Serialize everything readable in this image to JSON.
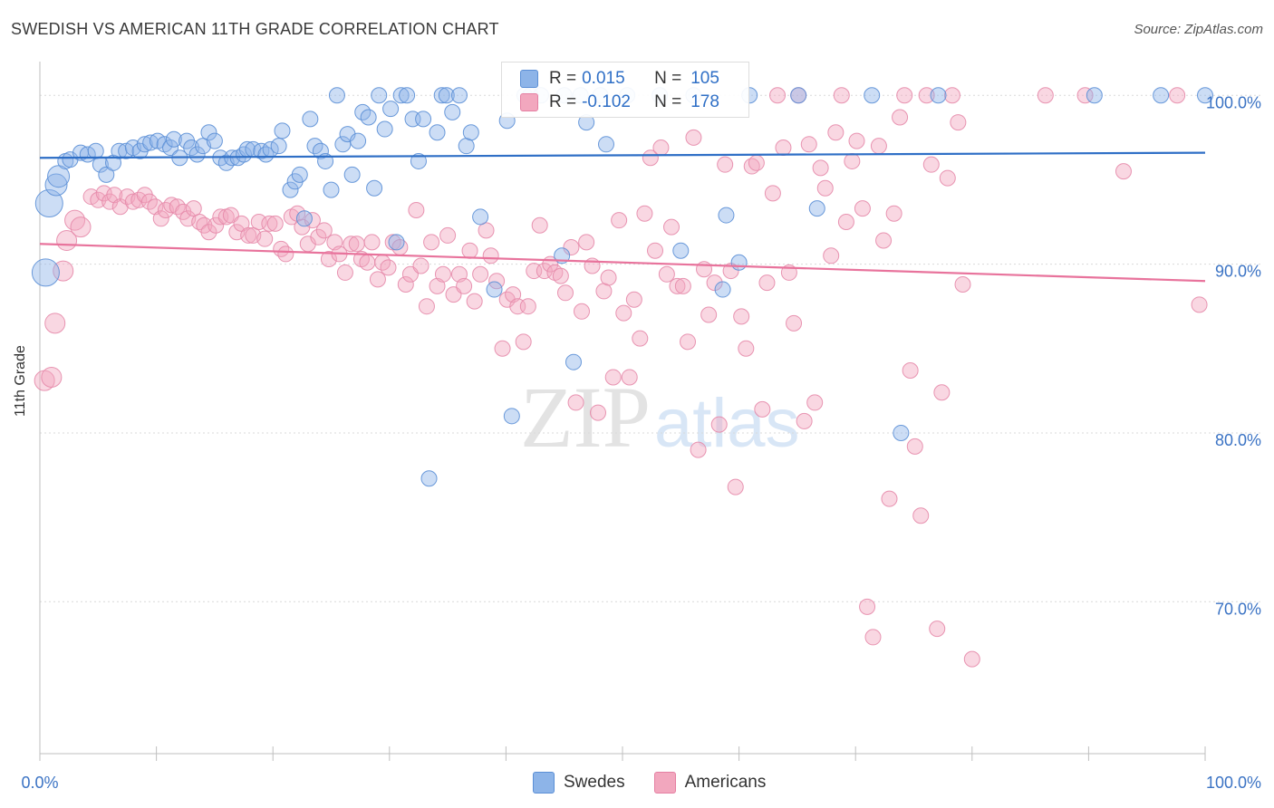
{
  "title": "SWEDISH VS AMERICAN 11TH GRADE CORRELATION CHART",
  "source": "Source: ZipAtlas.com",
  "watermark": {
    "zip": "ZIP",
    "atlas": "atlas"
  },
  "legend": {
    "rows": [
      {
        "r_label": "R =",
        "r_value": "0.015",
        "n_label": "N =",
        "n_value": "105",
        "color": "#8db4e8"
      },
      {
        "r_label": "R =",
        "r_value": "-0.102",
        "n_label": "N =",
        "n_value": "178",
        "color": "#f2a7be"
      }
    ]
  },
  "bottom_legend": [
    {
      "label": "Swedes",
      "color": "#8db4e8"
    },
    {
      "label": "Americans",
      "color": "#f2a7be"
    }
  ],
  "chart_data": {
    "type": "scatter",
    "title": "SWEDISH VS AMERICAN 11TH GRADE CORRELATION CHART",
    "xlabel": "",
    "ylabel": "11th Grade",
    "xlim": [
      0,
      100
    ],
    "ylim": [
      61,
      102
    ],
    "x_tick_labels": [
      "0.0%",
      "100.0%"
    ],
    "y_ticks": [
      {
        "value": 100,
        "label": "100.0%"
      },
      {
        "value": 90,
        "label": "90.0%"
      },
      {
        "value": 80,
        "label": "80.0%"
      },
      {
        "value": 70,
        "label": "70.0%"
      }
    ],
    "grid": true,
    "legend_position": "top-center",
    "series": [
      {
        "name": "Swedes",
        "color": "#8db4e8",
        "line_color": "#2f6fc6",
        "trend": [
          [
            0,
            96.3
          ],
          [
            100,
            96.6
          ]
        ],
        "points": [
          [
            0.5,
            89.5
          ],
          [
            0.8,
            93.6
          ],
          [
            1.4,
            94.7
          ],
          [
            1.6,
            95.2
          ],
          [
            2.2,
            96.1
          ],
          [
            2.6,
            96.2
          ],
          [
            3.5,
            96.6
          ],
          [
            4.1,
            96.5
          ],
          [
            4.8,
            96.7
          ],
          [
            5.2,
            95.9
          ],
          [
            5.7,
            95.3
          ],
          [
            6.3,
            96.0
          ],
          [
            6.8,
            96.7
          ],
          [
            7.4,
            96.7
          ],
          [
            8.0,
            96.9
          ],
          [
            8.6,
            96.7
          ],
          [
            9.0,
            97.1
          ],
          [
            9.5,
            97.2
          ],
          [
            10.1,
            97.3
          ],
          [
            10.7,
            97.1
          ],
          [
            11.2,
            96.9
          ],
          [
            11.5,
            97.4
          ],
          [
            12.0,
            96.3
          ],
          [
            12.6,
            97.3
          ],
          [
            13.0,
            96.9
          ],
          [
            13.5,
            96.5
          ],
          [
            14.0,
            97.0
          ],
          [
            14.5,
            97.8
          ],
          [
            15.0,
            97.3
          ],
          [
            15.5,
            96.3
          ],
          [
            16.0,
            96.0
          ],
          [
            16.5,
            96.3
          ],
          [
            17.0,
            96.3
          ],
          [
            17.5,
            96.5
          ],
          [
            17.8,
            96.8
          ],
          [
            18.3,
            96.8
          ],
          [
            19.0,
            96.7
          ],
          [
            19.4,
            96.5
          ],
          [
            19.8,
            96.8
          ],
          [
            20.5,
            97.0
          ],
          [
            20.8,
            97.9
          ],
          [
            21.5,
            94.4
          ],
          [
            21.9,
            94.9
          ],
          [
            22.3,
            95.3
          ],
          [
            22.7,
            92.7
          ],
          [
            23.2,
            98.6
          ],
          [
            23.6,
            97.0
          ],
          [
            24.1,
            96.7
          ],
          [
            24.5,
            96.1
          ],
          [
            25.0,
            94.4
          ],
          [
            25.5,
            100.0
          ],
          [
            26.0,
            97.1
          ],
          [
            26.4,
            97.7
          ],
          [
            26.8,
            95.3
          ],
          [
            27.3,
            97.3
          ],
          [
            27.7,
            99.0
          ],
          [
            28.2,
            98.7
          ],
          [
            28.7,
            94.5
          ],
          [
            29.1,
            100.0
          ],
          [
            29.6,
            98.0
          ],
          [
            30.1,
            99.2
          ],
          [
            30.6,
            91.3
          ],
          [
            31.0,
            100.0
          ],
          [
            31.5,
            100.0
          ],
          [
            32.0,
            98.6
          ],
          [
            32.5,
            96.1
          ],
          [
            32.9,
            98.6
          ],
          [
            33.4,
            77.3
          ],
          [
            34.1,
            97.8
          ],
          [
            34.5,
            100.0
          ],
          [
            34.9,
            100.0
          ],
          [
            35.4,
            99.0
          ],
          [
            36.0,
            100.0
          ],
          [
            36.6,
            97.0
          ],
          [
            37.0,
            97.8
          ],
          [
            37.8,
            92.8
          ],
          [
            39.0,
            88.5
          ],
          [
            40.1,
            98.5
          ],
          [
            40.5,
            81.0
          ],
          [
            41.6,
            100.0
          ],
          [
            42.1,
            100.0
          ],
          [
            43.0,
            100.0
          ],
          [
            45.0,
            100.0
          ],
          [
            45.8,
            84.2
          ],
          [
            46.4,
            100.0
          ],
          [
            46.9,
            98.4
          ],
          [
            48.1,
            100.0
          ],
          [
            48.6,
            97.1
          ],
          [
            50.4,
            100.0
          ],
          [
            53.2,
            100.0
          ],
          [
            55.0,
            90.8
          ],
          [
            56.1,
            100.0
          ],
          [
            58.6,
            88.5
          ],
          [
            58.9,
            92.9
          ],
          [
            60.9,
            100.0
          ],
          [
            65.1,
            100.0
          ],
          [
            66.7,
            93.3
          ],
          [
            71.4,
            100.0
          ],
          [
            73.9,
            80.0
          ],
          [
            77.1,
            100.0
          ],
          [
            90.5,
            100.0
          ],
          [
            96.2,
            100.0
          ],
          [
            100.0,
            100.0
          ],
          [
            60.0,
            90.1
          ],
          [
            44.8,
            90.5
          ]
        ]
      },
      {
        "name": "Americans",
        "color": "#f2a7be",
        "line_color": "#e8739c",
        "trend": [
          [
            0,
            91.2
          ],
          [
            100,
            89.0
          ]
        ],
        "points": [
          [
            0.4,
            83.1
          ],
          [
            1.0,
            83.3
          ],
          [
            1.3,
            86.5
          ],
          [
            2.0,
            89.6
          ],
          [
            2.3,
            91.4
          ],
          [
            3.0,
            92.6
          ],
          [
            3.5,
            92.2
          ],
          [
            4.4,
            94.0
          ],
          [
            5.0,
            93.8
          ],
          [
            5.5,
            94.2
          ],
          [
            6.0,
            93.7
          ],
          [
            6.4,
            94.1
          ],
          [
            6.9,
            93.4
          ],
          [
            7.5,
            94.0
          ],
          [
            8.0,
            93.7
          ],
          [
            8.5,
            93.8
          ],
          [
            9.0,
            94.1
          ],
          [
            9.4,
            93.7
          ],
          [
            9.9,
            93.4
          ],
          [
            10.4,
            92.7
          ],
          [
            10.8,
            93.2
          ],
          [
            11.3,
            93.5
          ],
          [
            11.8,
            93.4
          ],
          [
            12.3,
            93.1
          ],
          [
            12.7,
            92.7
          ],
          [
            13.2,
            93.3
          ],
          [
            13.7,
            92.5
          ],
          [
            14.1,
            92.3
          ],
          [
            14.5,
            91.9
          ],
          [
            15.1,
            92.3
          ],
          [
            15.5,
            92.8
          ],
          [
            16.0,
            92.8
          ],
          [
            16.4,
            92.9
          ],
          [
            16.9,
            91.9
          ],
          [
            17.3,
            92.4
          ],
          [
            17.9,
            91.7
          ],
          [
            18.3,
            91.7
          ],
          [
            18.8,
            92.5
          ],
          [
            19.3,
            91.5
          ],
          [
            19.7,
            92.4
          ],
          [
            20.2,
            92.4
          ],
          [
            20.7,
            90.9
          ],
          [
            21.1,
            90.6
          ],
          [
            21.6,
            92.8
          ],
          [
            22.1,
            93.0
          ],
          [
            22.5,
            92.2
          ],
          [
            23.0,
            91.2
          ],
          [
            23.4,
            92.6
          ],
          [
            23.9,
            91.6
          ],
          [
            24.4,
            92.0
          ],
          [
            24.8,
            90.3
          ],
          [
            25.3,
            91.3
          ],
          [
            25.7,
            90.6
          ],
          [
            26.2,
            89.5
          ],
          [
            26.7,
            91.2
          ],
          [
            27.2,
            91.2
          ],
          [
            27.6,
            90.3
          ],
          [
            28.1,
            90.1
          ],
          [
            28.5,
            91.3
          ],
          [
            29.0,
            89.1
          ],
          [
            29.4,
            90.1
          ],
          [
            29.9,
            89.8
          ],
          [
            30.3,
            91.3
          ],
          [
            30.9,
            91.0
          ],
          [
            31.4,
            88.8
          ],
          [
            31.8,
            89.4
          ],
          [
            32.3,
            93.2
          ],
          [
            32.7,
            89.9
          ],
          [
            33.2,
            87.5
          ],
          [
            33.6,
            91.3
          ],
          [
            34.1,
            88.7
          ],
          [
            34.6,
            89.4
          ],
          [
            35.0,
            91.7
          ],
          [
            35.5,
            88.2
          ],
          [
            36.0,
            89.4
          ],
          [
            36.4,
            88.7
          ],
          [
            36.9,
            90.8
          ],
          [
            37.3,
            87.8
          ],
          [
            37.8,
            89.4
          ],
          [
            38.3,
            92.0
          ],
          [
            38.7,
            90.5
          ],
          [
            39.2,
            89.0
          ],
          [
            39.7,
            85.0
          ],
          [
            40.1,
            87.9
          ],
          [
            40.6,
            88.2
          ],
          [
            41.0,
            87.5
          ],
          [
            41.5,
            85.4
          ],
          [
            41.9,
            87.5
          ],
          [
            42.4,
            89.6
          ],
          [
            42.9,
            92.3
          ],
          [
            43.3,
            89.6
          ],
          [
            43.8,
            90.0
          ],
          [
            44.2,
            89.5
          ],
          [
            44.7,
            89.3
          ],
          [
            45.1,
            88.3
          ],
          [
            45.6,
            91.0
          ],
          [
            46.0,
            81.8
          ],
          [
            46.5,
            87.2
          ],
          [
            46.9,
            91.3
          ],
          [
            47.4,
            89.9
          ],
          [
            47.9,
            81.2
          ],
          [
            48.4,
            88.4
          ],
          [
            48.8,
            89.2
          ],
          [
            49.2,
            83.3
          ],
          [
            49.7,
            92.6
          ],
          [
            50.1,
            87.1
          ],
          [
            50.6,
            83.3
          ],
          [
            51.0,
            87.9
          ],
          [
            51.5,
            85.6
          ],
          [
            51.9,
            93.0
          ],
          [
            52.4,
            96.3
          ],
          [
            52.8,
            90.8
          ],
          [
            53.3,
            96.9
          ],
          [
            53.8,
            89.4
          ],
          [
            54.2,
            92.2
          ],
          [
            54.7,
            88.7
          ],
          [
            55.2,
            88.7
          ],
          [
            55.6,
            85.4
          ],
          [
            56.1,
            97.5
          ],
          [
            56.5,
            79.0
          ],
          [
            57.0,
            89.7
          ],
          [
            57.4,
            87.0
          ],
          [
            57.9,
            88.9
          ],
          [
            58.3,
            80.5
          ],
          [
            58.8,
            95.9
          ],
          [
            59.3,
            89.6
          ],
          [
            59.7,
            76.8
          ],
          [
            60.2,
            86.9
          ],
          [
            60.6,
            85.0
          ],
          [
            61.1,
            95.8
          ],
          [
            61.5,
            96.0
          ],
          [
            62.0,
            81.4
          ],
          [
            62.4,
            88.9
          ],
          [
            62.9,
            94.2
          ],
          [
            63.3,
            100.0
          ],
          [
            63.8,
            96.9
          ],
          [
            64.3,
            89.5
          ],
          [
            64.7,
            86.5
          ],
          [
            65.1,
            100.0
          ],
          [
            65.6,
            80.7
          ],
          [
            66.0,
            97.1
          ],
          [
            66.5,
            81.8
          ],
          [
            67.0,
            95.7
          ],
          [
            67.4,
            94.5
          ],
          [
            67.9,
            90.5
          ],
          [
            68.3,
            97.8
          ],
          [
            68.8,
            100.0
          ],
          [
            69.2,
            92.5
          ],
          [
            69.7,
            96.1
          ],
          [
            70.1,
            97.3
          ],
          [
            70.6,
            93.3
          ],
          [
            71.0,
            69.7
          ],
          [
            71.5,
            67.9
          ],
          [
            72.0,
            97.0
          ],
          [
            72.4,
            91.4
          ],
          [
            72.9,
            76.1
          ],
          [
            73.3,
            93.0
          ],
          [
            73.8,
            98.7
          ],
          [
            74.2,
            100.0
          ],
          [
            74.7,
            83.7
          ],
          [
            75.1,
            79.2
          ],
          [
            75.6,
            75.1
          ],
          [
            76.1,
            100.0
          ],
          [
            76.5,
            95.9
          ],
          [
            77.0,
            68.4
          ],
          [
            77.4,
            82.4
          ],
          [
            77.9,
            95.1
          ],
          [
            78.3,
            100.0
          ],
          [
            78.8,
            98.4
          ],
          [
            79.2,
            88.8
          ],
          [
            80.0,
            66.6
          ],
          [
            86.3,
            100.0
          ],
          [
            89.7,
            100.0
          ],
          [
            93.0,
            95.5
          ],
          [
            97.6,
            100.0
          ],
          [
            99.5,
            87.6
          ]
        ]
      }
    ]
  }
}
